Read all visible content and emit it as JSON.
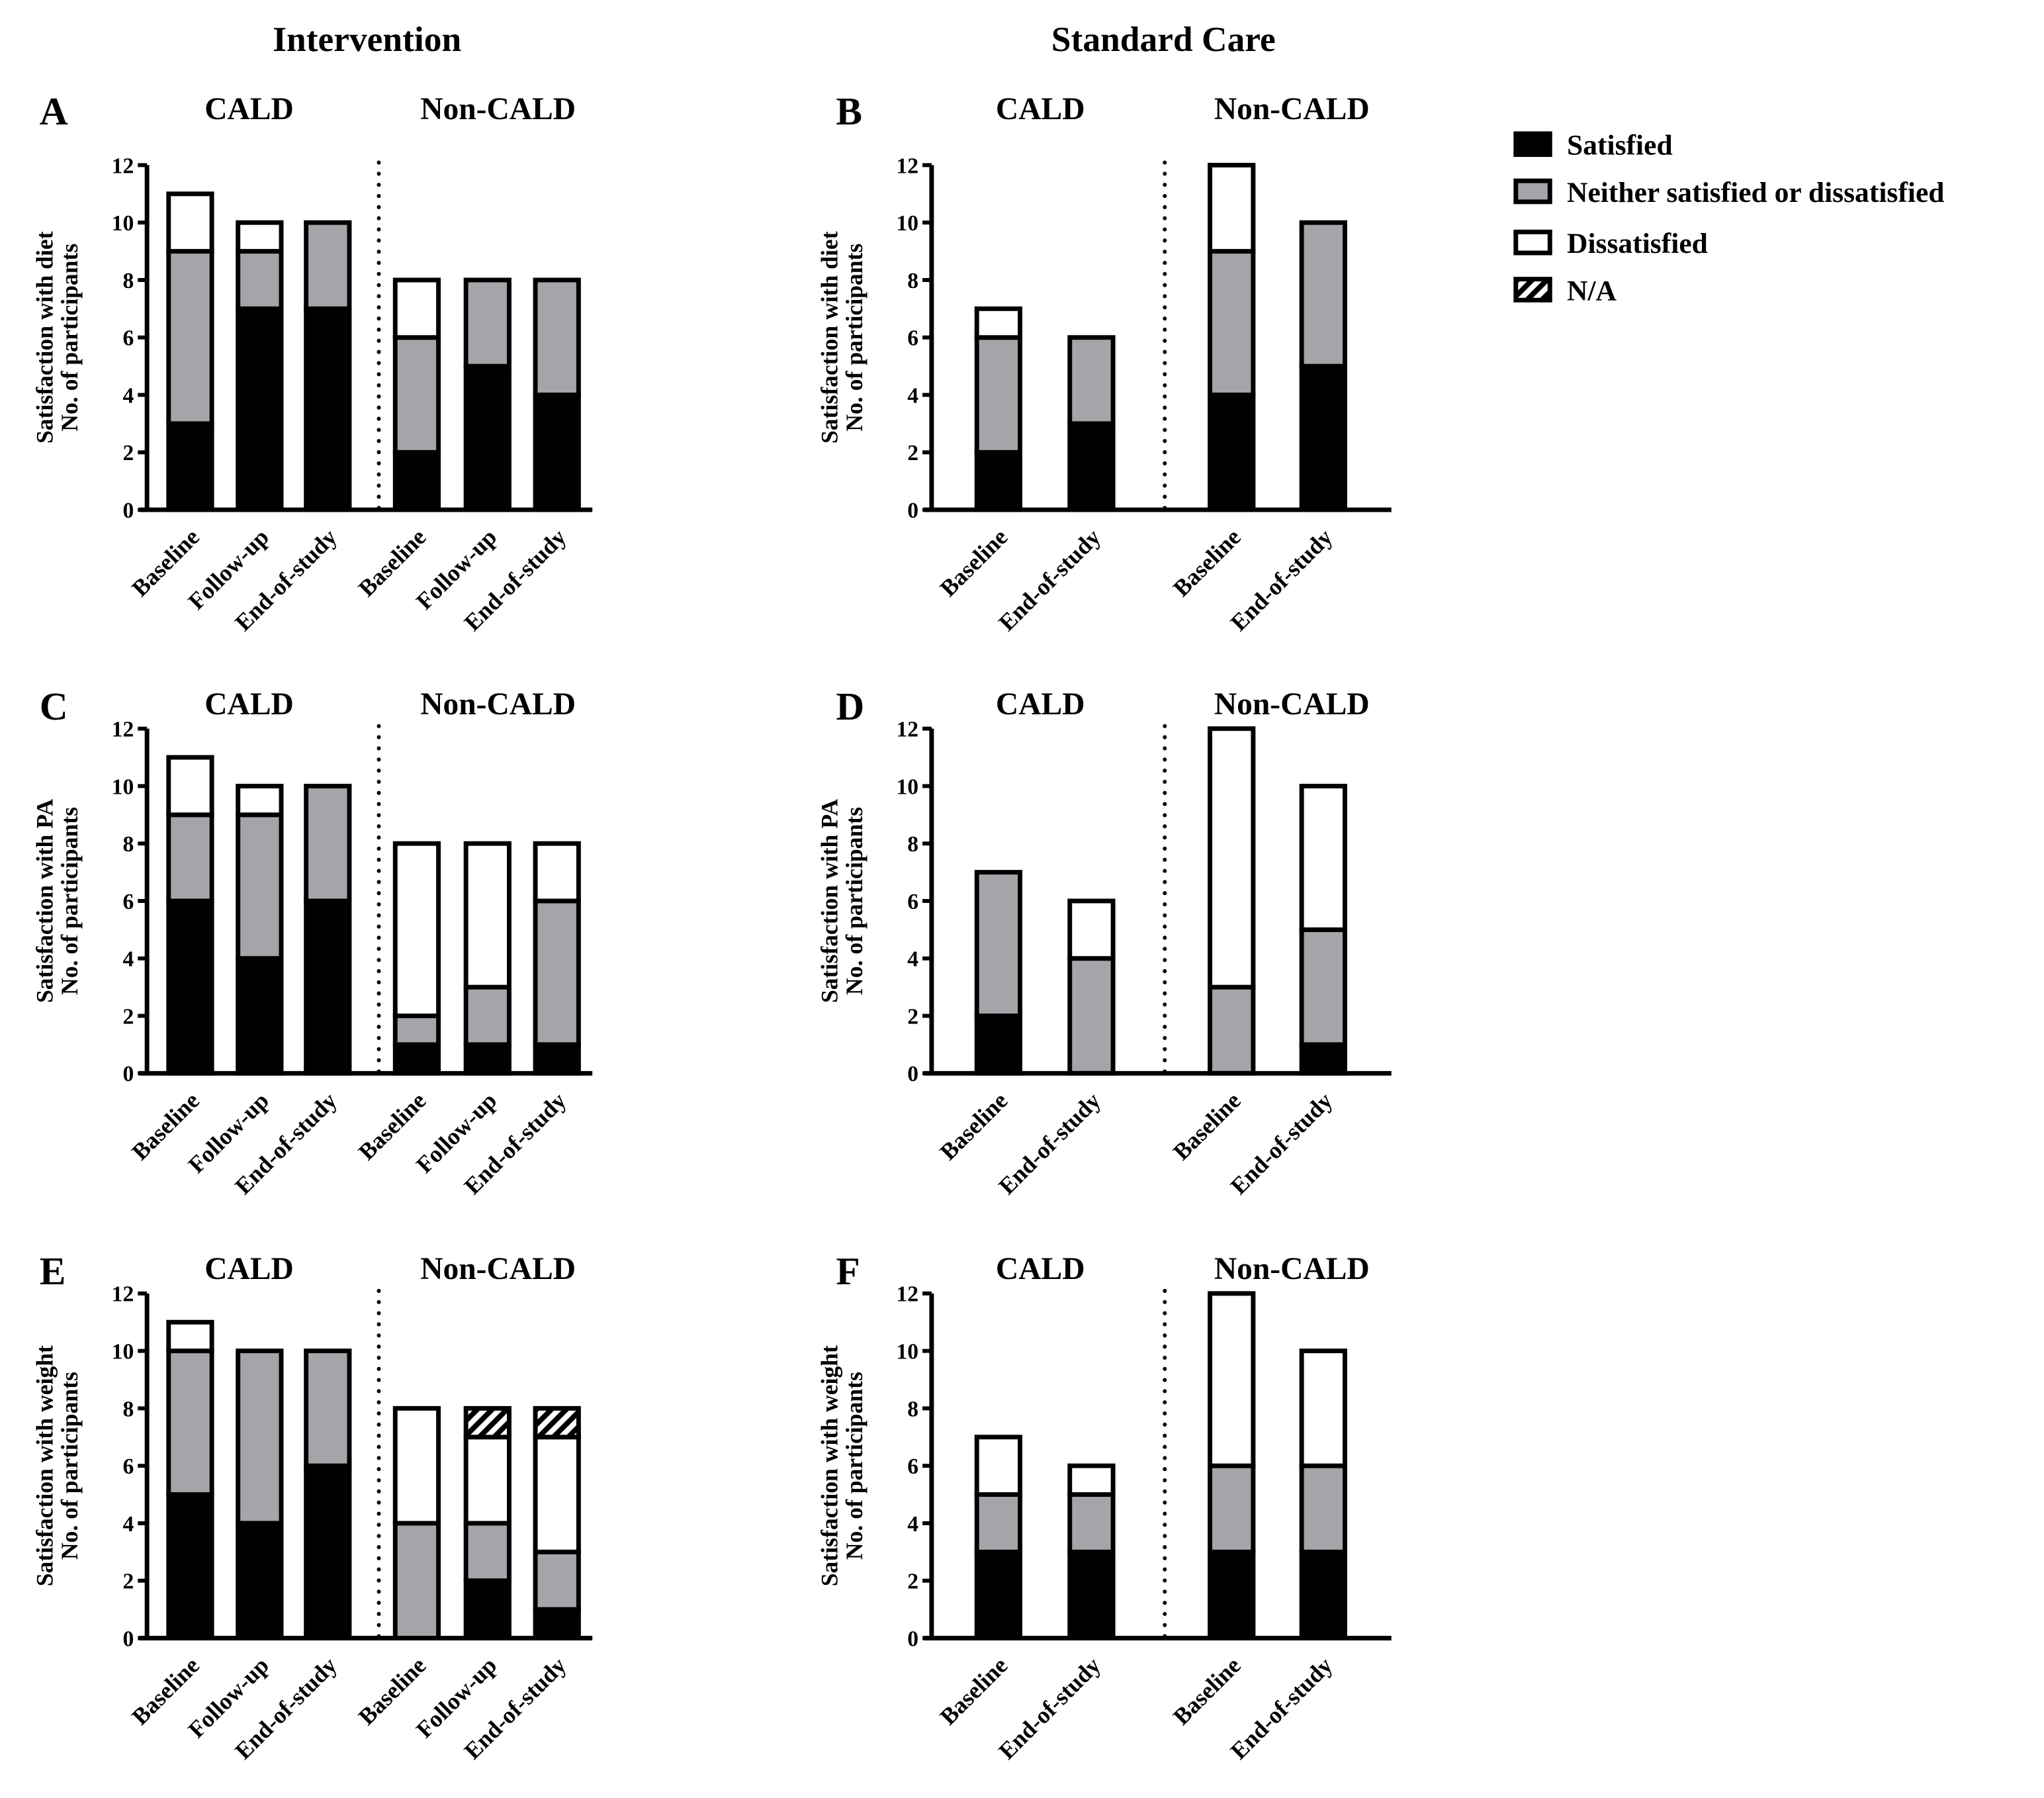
{
  "column_titles": [
    "Intervention",
    "Standard Care"
  ],
  "legend": [
    {
      "name": "Satisfied",
      "color": "#000000"
    },
    {
      "name": "Neither satisfied or dissatisfied",
      "color": "#a5a4a8"
    },
    {
      "name": "Dissatisfied",
      "color": "#ffffff"
    },
    {
      "name": "N/A",
      "color": "hatch"
    }
  ],
  "chart_data": [
    {
      "type": "bar",
      "stacked": true,
      "panel": "A",
      "ylabel": [
        "Satisfaction with diet",
        "No. of participants"
      ],
      "ylim": [
        0,
        12
      ],
      "yticks": [
        0,
        2,
        4,
        6,
        8,
        10,
        12
      ],
      "groups": [
        {
          "name": "CALD",
          "categories": [
            "Baseline",
            "Follow-up",
            "End-of-study"
          ],
          "series": {
            "Satisfied": [
              3,
              7,
              7
            ],
            "Neither satisfied or dissatisfied": [
              6,
              2,
              3
            ],
            "Dissatisfied": [
              2,
              1,
              0
            ],
            "N/A": [
              0,
              0,
              0
            ]
          }
        },
        {
          "name": "Non-CALD",
          "categories": [
            "Baseline",
            "Follow-up",
            "End-of-study"
          ],
          "series": {
            "Satisfied": [
              2,
              5,
              4
            ],
            "Neither satisfied or dissatisfied": [
              4,
              3,
              4
            ],
            "Dissatisfied": [
              2,
              0,
              0
            ],
            "N/A": [
              0,
              0,
              0
            ]
          }
        }
      ]
    },
    {
      "type": "bar",
      "stacked": true,
      "panel": "B",
      "ylabel": [
        "Satisfaction with diet",
        "No. of participants"
      ],
      "ylim": [
        0,
        12
      ],
      "yticks": [
        0,
        2,
        4,
        6,
        8,
        10,
        12
      ],
      "groups": [
        {
          "name": "CALD",
          "categories": [
            "Baseline",
            "End-of-study"
          ],
          "series": {
            "Satisfied": [
              2,
              3
            ],
            "Neither satisfied or dissatisfied": [
              4,
              3
            ],
            "Dissatisfied": [
              1,
              0
            ],
            "N/A": [
              0,
              0
            ]
          }
        },
        {
          "name": "Non-CALD",
          "categories": [
            "Baseline",
            "End-of-study"
          ],
          "series": {
            "Satisfied": [
              4,
              5
            ],
            "Neither satisfied or dissatisfied": [
              5,
              5
            ],
            "Dissatisfied": [
              3,
              0
            ],
            "N/A": [
              0,
              0
            ]
          }
        }
      ]
    },
    {
      "type": "bar",
      "stacked": true,
      "panel": "C",
      "ylabel": [
        "Satisfaction with PA",
        "No. of participants"
      ],
      "ylim": [
        0,
        12
      ],
      "yticks": [
        0,
        2,
        4,
        6,
        8,
        10,
        12
      ],
      "groups": [
        {
          "name": "CALD",
          "categories": [
            "Baseline",
            "Follow-up",
            "End-of-study"
          ],
          "series": {
            "Satisfied": [
              6,
              4,
              6
            ],
            "Neither satisfied or dissatisfied": [
              3,
              5,
              4
            ],
            "Dissatisfied": [
              2,
              1,
              0
            ],
            "N/A": [
              0,
              0,
              0
            ]
          }
        },
        {
          "name": "Non-CALD",
          "categories": [
            "Baseline",
            "Follow-up",
            "End-of-study"
          ],
          "series": {
            "Satisfied": [
              1,
              1,
              1
            ],
            "Neither satisfied or dissatisfied": [
              1,
              2,
              5
            ],
            "Dissatisfied": [
              6,
              5,
              2
            ],
            "N/A": [
              0,
              0,
              0
            ]
          }
        }
      ]
    },
    {
      "type": "bar",
      "stacked": true,
      "panel": "D",
      "ylabel": [
        "Satisfaction with PA",
        "No. of participants"
      ],
      "ylim": [
        0,
        12
      ],
      "yticks": [
        0,
        2,
        4,
        6,
        8,
        10,
        12
      ],
      "groups": [
        {
          "name": "CALD",
          "categories": [
            "Baseline",
            "End-of-study"
          ],
          "series": {
            "Satisfied": [
              2,
              0
            ],
            "Neither satisfied or dissatisfied": [
              5,
              4
            ],
            "Dissatisfied": [
              0,
              2
            ],
            "N/A": [
              0,
              0
            ]
          }
        },
        {
          "name": "Non-CALD",
          "categories": [
            "Baseline",
            "End-of-study"
          ],
          "series": {
            "Satisfied": [
              0,
              1
            ],
            "Neither satisfied or dissatisfied": [
              3,
              4
            ],
            "Dissatisfied": [
              9,
              5
            ],
            "N/A": [
              0,
              0
            ]
          }
        }
      ]
    },
    {
      "type": "bar",
      "stacked": true,
      "panel": "E",
      "ylabel": [
        "Satisfaction with weight",
        "No. of participants"
      ],
      "ylim": [
        0,
        12
      ],
      "yticks": [
        0,
        2,
        4,
        6,
        8,
        10,
        12
      ],
      "groups": [
        {
          "name": "CALD",
          "categories": [
            "Baseline",
            "Follow-up",
            "End-of-study"
          ],
          "series": {
            "Satisfied": [
              5,
              4,
              6
            ],
            "Neither satisfied or dissatisfied": [
              5,
              6,
              4
            ],
            "Dissatisfied": [
              1,
              0,
              0
            ],
            "N/A": [
              0,
              0,
              0
            ]
          }
        },
        {
          "name": "Non-CALD",
          "categories": [
            "Baseline",
            "Follow-up",
            "End-of-study"
          ],
          "series": {
            "Satisfied": [
              0,
              2,
              1
            ],
            "Neither satisfied or dissatisfied": [
              4,
              2,
              2
            ],
            "Dissatisfied": [
              4,
              3,
              4
            ],
            "N/A": [
              0,
              1,
              1
            ]
          }
        }
      ]
    },
    {
      "type": "bar",
      "stacked": true,
      "panel": "F",
      "ylabel": [
        "Satisfaction with weight",
        "No. of participants"
      ],
      "ylim": [
        0,
        12
      ],
      "yticks": [
        0,
        2,
        4,
        6,
        8,
        10,
        12
      ],
      "groups": [
        {
          "name": "CALD",
          "categories": [
            "Baseline",
            "End-of-study"
          ],
          "series": {
            "Satisfied": [
              3,
              3
            ],
            "Neither satisfied or dissatisfied": [
              2,
              2
            ],
            "Dissatisfied": [
              2,
              1
            ],
            "N/A": [
              0,
              0
            ]
          }
        },
        {
          "name": "Non-CALD",
          "categories": [
            "Baseline",
            "End-of-study"
          ],
          "series": {
            "Satisfied": [
              3,
              3
            ],
            "Neither satisfied or dissatisfied": [
              3,
              3
            ],
            "Dissatisfied": [
              6,
              4
            ],
            "N/A": [
              0,
              0
            ]
          }
        }
      ]
    }
  ]
}
